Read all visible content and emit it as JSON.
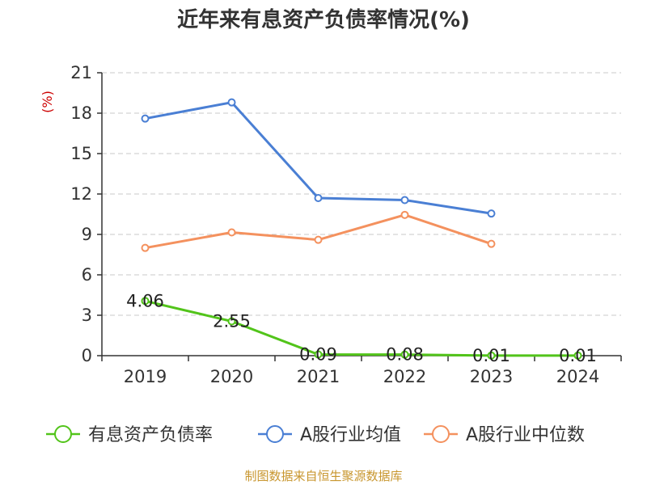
{
  "chart_data": {
    "type": "line",
    "title": "近年来有息资产负债率情况(%)",
    "ylabel": "(%)",
    "xlabel": "",
    "categories": [
      "2019",
      "2020",
      "2021",
      "2022",
      "2023",
      "2024"
    ],
    "ylim": [
      0,
      21
    ],
    "yticks": [
      0,
      3,
      6,
      9,
      12,
      15,
      18,
      21
    ],
    "grid": true,
    "legend_position": "bottom",
    "series": [
      {
        "name": "有息资产负债率",
        "color": "#52c41a",
        "values": [
          4.06,
          2.55,
          0.09,
          0.08,
          0.01,
          0.01
        ],
        "labels": [
          "4.06",
          "2.55",
          "0.09",
          "0.08",
          "0.01",
          "0.01"
        ]
      },
      {
        "name": "A股行业均值",
        "color": "#4a7fd4",
        "values": [
          17.6,
          18.8,
          11.7,
          11.55,
          10.55,
          null
        ]
      },
      {
        "name": "A股行业中位数",
        "color": "#f4915e",
        "values": [
          8.0,
          9.15,
          8.6,
          10.45,
          8.3,
          null
        ]
      }
    ]
  },
  "source": "制图数据来自恒生聚源数据库"
}
